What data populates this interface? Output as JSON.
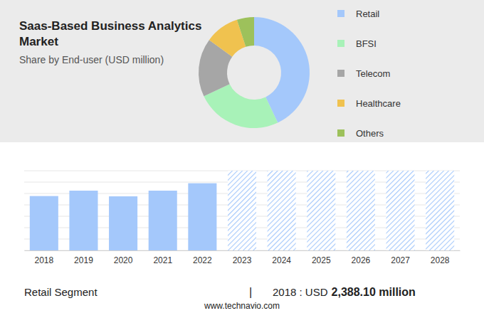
{
  "chart_data": [
    {
      "type": "pie",
      "title": "Saas-Based Business Analytics Market",
      "subtitle": "Share by End-user (USD million)",
      "categories": [
        "Retail",
        "BFSI",
        "Telecom",
        "Healthcare",
        "Others"
      ],
      "values": [
        43,
        25,
        17,
        10,
        5
      ],
      "colors": [
        "#a4c8fb",
        "#a8f2b8",
        "#a6a6a6",
        "#f0c24f",
        "#9dc15b"
      ],
      "legend": "right"
    },
    {
      "type": "bar",
      "categories": [
        "2018",
        "2019",
        "2020",
        "2021",
        "2022",
        "2023",
        "2024",
        "2025",
        "2026",
        "2027",
        "2028"
      ],
      "series": [
        {
          "color": "#a4c8fb",
          "values": [
            2388.1,
            2625,
            2375,
            2625,
            2950,
            null,
            null,
            null,
            null,
            null,
            null
          ]
        },
        {
          "color": "#a4c8fb",
          "marker": "hatch",
          "values": [
            null,
            null,
            null,
            null,
            null,
            3500,
            3500,
            3500,
            3500,
            3500,
            3500
          ]
        }
      ],
      "ylim": [
        0,
        3500
      ],
      "yticks": [
        0,
        500,
        1000,
        1500,
        2000,
        2500,
        3000,
        3500
      ],
      "grid": true,
      "tick_labels": "x",
      "annotations": [
        "Retail Segment",
        "|",
        "2018 : USD",
        "2,388.10 million",
        "www.technavio.com"
      ]
    }
  ]
}
